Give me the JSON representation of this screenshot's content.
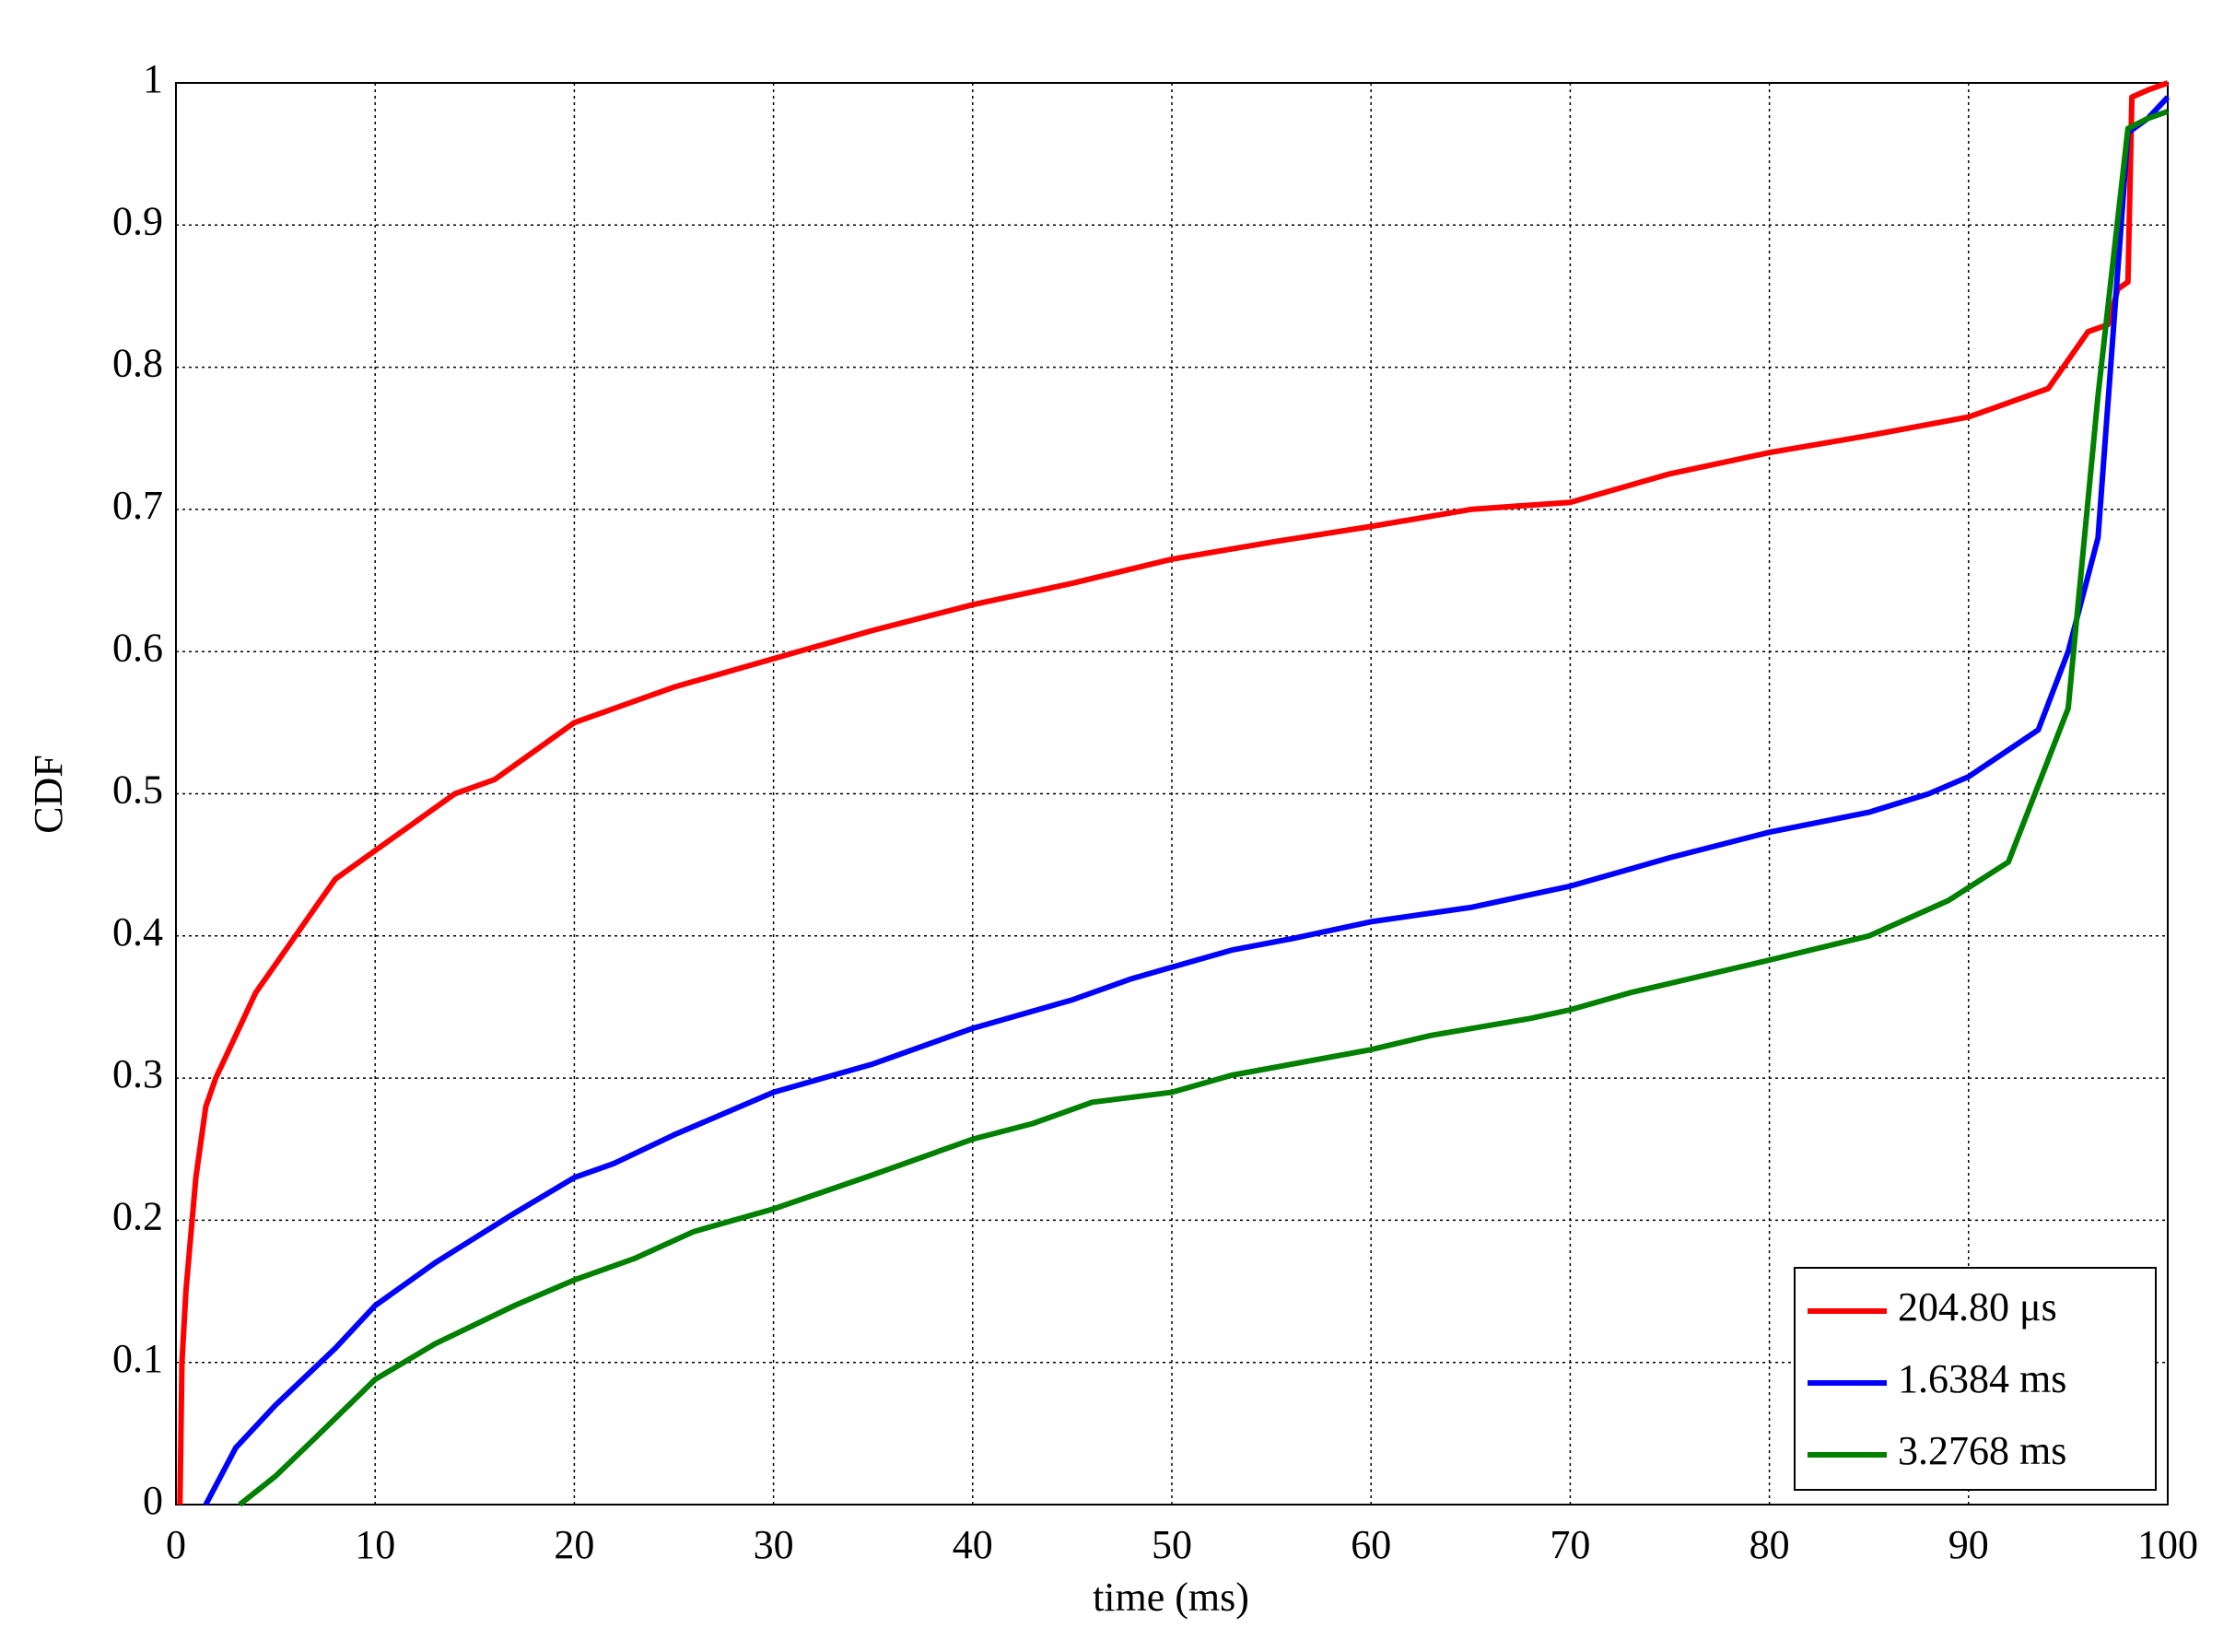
{
  "chart_data": {
    "type": "line",
    "xlabel": "time (ms)",
    "ylabel": "CDF",
    "xlim": [
      0,
      100
    ],
    "xticks": [
      0,
      10,
      20,
      30,
      40,
      50,
      60,
      70,
      80,
      90,
      100
    ],
    "ylim": [
      0,
      1
    ],
    "yticks": [
      0,
      0.1,
      0.2,
      0.3,
      0.4,
      0.5,
      0.6,
      0.7,
      0.8,
      0.9,
      1
    ],
    "grid": true,
    "legend": "lower right",
    "series": [
      {
        "name": "204.80 μs",
        "color": "#ff0000",
        "x": [
          0.2,
          0.3,
          0.5,
          1,
          1.5,
          2,
          3,
          4,
          5,
          6,
          7,
          8,
          10,
          12,
          14,
          16,
          18,
          20,
          25,
          30,
          35,
          40,
          45,
          50,
          55,
          60,
          65,
          70,
          75,
          80,
          85,
          90,
          94,
          95,
          96,
          97,
          97.5,
          98,
          98.2,
          99,
          100
        ],
        "values": [
          0,
          0.1,
          0.15,
          0.23,
          0.28,
          0.3,
          0.33,
          0.36,
          0.38,
          0.4,
          0.42,
          0.44,
          0.46,
          0.48,
          0.5,
          0.51,
          0.53,
          0.55,
          0.575,
          0.595,
          0.615,
          0.633,
          0.648,
          0.665,
          0.677,
          0.688,
          0.7,
          0.705,
          0.725,
          0.74,
          0.752,
          0.765,
          0.785,
          0.805,
          0.825,
          0.83,
          0.855,
          0.86,
          0.99,
          0.995,
          1
        ]
      },
      {
        "name": "1.6384 ms",
        "color": "#0000ff",
        "x": [
          1.5,
          3,
          5,
          8,
          10,
          13,
          17,
          20,
          22,
          25,
          30,
          35,
          40,
          45,
          48,
          50,
          53,
          56,
          60,
          65,
          70,
          75,
          80,
          85,
          88,
          90,
          93.5,
          95,
          96.5,
          98,
          99,
          100
        ],
        "values": [
          0,
          0.04,
          0.07,
          0.11,
          0.14,
          0.17,
          0.205,
          0.23,
          0.24,
          0.26,
          0.29,
          0.31,
          0.335,
          0.355,
          0.37,
          0.378,
          0.39,
          0.398,
          0.41,
          0.42,
          0.435,
          0.455,
          0.473,
          0.487,
          0.5,
          0.512,
          0.545,
          0.6,
          0.68,
          0.965,
          0.975,
          0.99
        ]
      },
      {
        "name": "3.2768 ms",
        "color": "#008000",
        "x": [
          3.2,
          5,
          7,
          10,
          13,
          17,
          20,
          23,
          26,
          30,
          35,
          40,
          43,
          46,
          50,
          53,
          60,
          63,
          68,
          70,
          73,
          80,
          85,
          89,
          92,
          95,
          96.5,
          98,
          99,
          100
        ],
        "values": [
          0,
          0.02,
          0.047,
          0.088,
          0.113,
          0.14,
          0.158,
          0.173,
          0.192,
          0.208,
          0.232,
          0.257,
          0.268,
          0.283,
          0.29,
          0.302,
          0.32,
          0.33,
          0.342,
          0.348,
          0.36,
          0.383,
          0.4,
          0.425,
          0.452,
          0.56,
          0.78,
          0.968,
          0.975,
          0.98
        ]
      }
    ]
  }
}
